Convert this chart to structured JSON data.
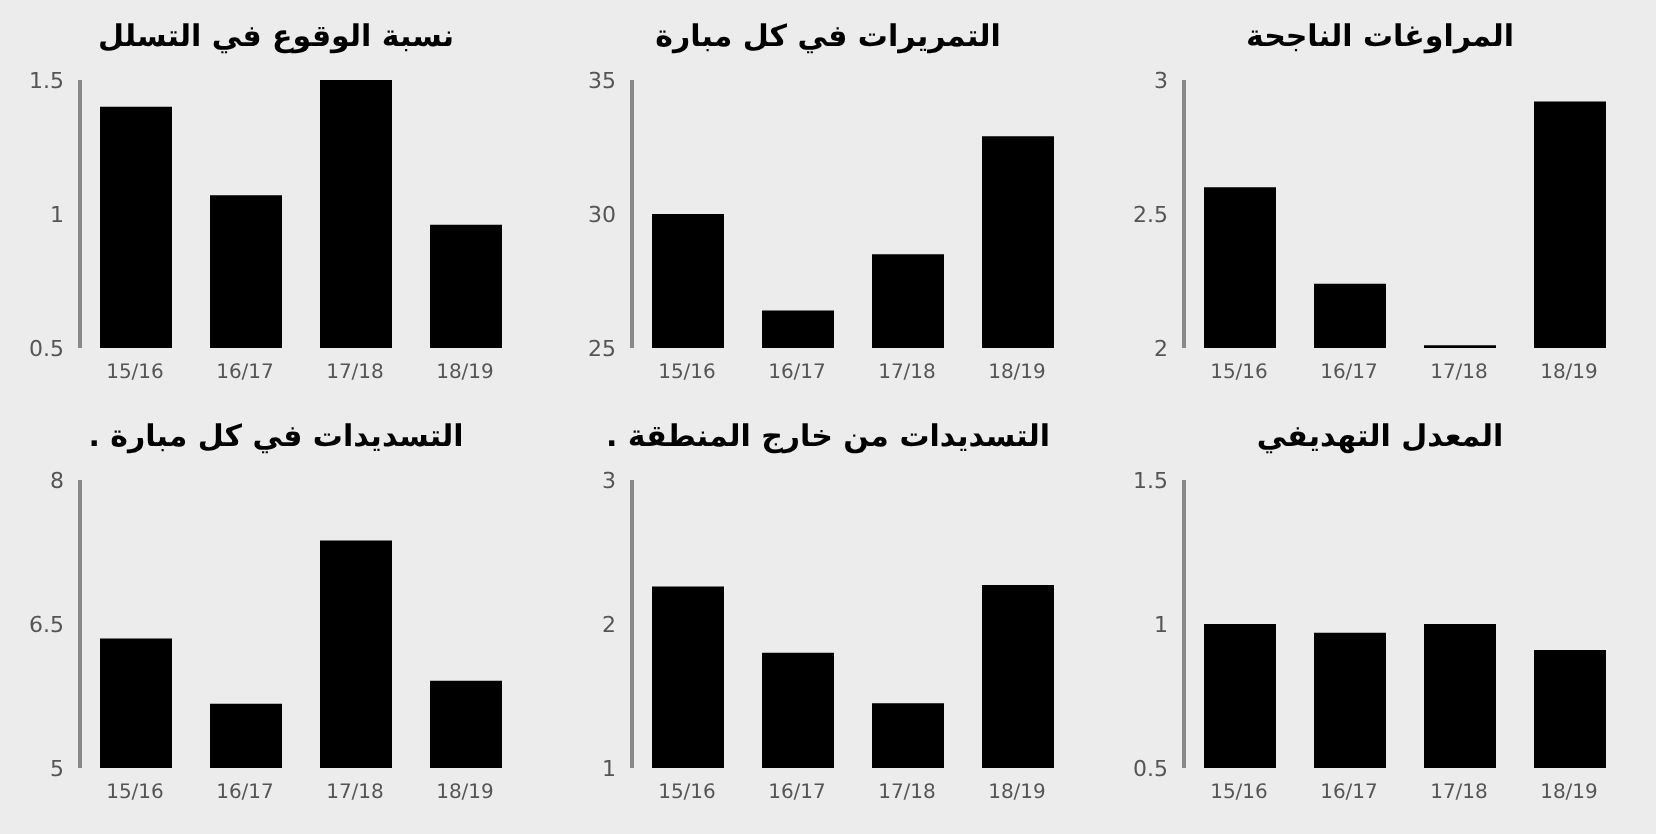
{
  "chart_data": [
    {
      "type": "bar",
      "title": "نسبة الوقوع في التسلل",
      "categories": [
        "15/16",
        "16/17",
        "17/18",
        "18/19"
      ],
      "values": [
        1.4,
        1.07,
        1.5,
        0.96
      ],
      "color": "#000000",
      "ylim": [
        0.5,
        1.5
      ],
      "yticks": [
        0.5,
        1,
        1.5
      ],
      "grid": false,
      "legend": false
    },
    {
      "type": "bar",
      "title": "التمريرات في كل مبارة",
      "categories": [
        "15/16",
        "16/17",
        "17/18",
        "18/19"
      ],
      "values": [
        30.0,
        26.4,
        28.5,
        32.9
      ],
      "color": "#000000",
      "ylim": [
        25,
        35
      ],
      "yticks": [
        25,
        30,
        35
      ],
      "grid": false,
      "legend": false
    },
    {
      "type": "bar",
      "title": "المراوغات الناجحة",
      "categories": [
        "15/16",
        "16/17",
        "17/18",
        "18/19"
      ],
      "values": [
        2.6,
        2.24,
        2.01,
        2.92
      ],
      "color": "#000000",
      "ylim": [
        2,
        3
      ],
      "yticks": [
        2,
        2.5,
        3
      ],
      "grid": false,
      "legend": false
    },
    {
      "type": "bar",
      "title": "التسديدات في كل مبارة .",
      "categories": [
        "15/16",
        "16/17",
        "17/18",
        "18/19"
      ],
      "values": [
        6.35,
        5.67,
        7.37,
        5.91
      ],
      "color": "#000000",
      "ylim": [
        5,
        8
      ],
      "yticks": [
        5,
        6.5,
        8
      ],
      "grid": false,
      "legend": false
    },
    {
      "type": "bar",
      "title": "التسديدات من خارج المنطقة .",
      "categories": [
        "15/16",
        "16/17",
        "17/18",
        "18/19"
      ],
      "values": [
        2.26,
        1.8,
        1.45,
        2.27
      ],
      "color": "#000000",
      "ylim": [
        1,
        3
      ],
      "yticks": [
        1,
        2,
        3
      ],
      "grid": false,
      "legend": false
    },
    {
      "type": "bar",
      "title": "المعدل التهديفي",
      "categories": [
        "15/16",
        "16/17",
        "17/18",
        "18/19"
      ],
      "values": [
        1.0,
        0.97,
        1.0,
        0.91
      ],
      "color": "#000000",
      "ylim": [
        0.5,
        1.5
      ],
      "yticks": [
        0.5,
        1,
        1.5
      ],
      "grid": false,
      "legend": false
    }
  ]
}
